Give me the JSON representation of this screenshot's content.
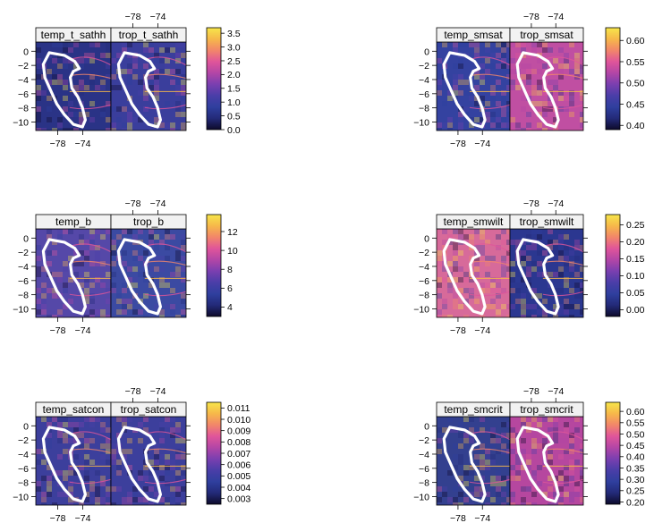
{
  "chart_data": [
    {
      "type": "heatmap",
      "panels": [
        "temp_t_sathh",
        "trop_t_sathh"
      ],
      "x_ticks": [
        -78,
        -74
      ],
      "y_ticks": [
        0,
        -2,
        -4,
        -6,
        -8,
        -10
      ],
      "colorbar": {
        "ticks": [
          "0.0",
          "0.5",
          "1.0",
          "1.5",
          "2.0",
          "2.5",
          "3.0",
          "3.5"
        ],
        "range": [
          0,
          3.7
        ]
      },
      "colorbar_lookup": [
        "#1d1a52",
        "#2c348f",
        "#4a3aa8",
        "#7d3fb0",
        "#b044a8",
        "#e0509a",
        "#f28a5a",
        "#f6e43e"
      ]
    },
    {
      "type": "heatmap",
      "panels": [
        "temp_smsat",
        "trop_smsat"
      ],
      "x_ticks": [
        -78,
        -74
      ],
      "y_ticks": [
        0,
        -2,
        -4,
        -6,
        -8,
        -10
      ],
      "colorbar": {
        "ticks": [
          "0.40",
          "0.45",
          "0.50",
          "0.55",
          "0.60"
        ],
        "range": [
          0.39,
          0.63
        ]
      }
    },
    {
      "type": "heatmap",
      "panels": [
        "temp_b",
        "trop_b"
      ],
      "x_ticks": [
        -78,
        -74
      ],
      "y_ticks": [
        0,
        -2,
        -4,
        -6,
        -8,
        -10
      ],
      "colorbar": {
        "ticks": [
          "4",
          "6",
          "8",
          "10",
          "12"
        ],
        "range": [
          3,
          13.8
        ]
      }
    },
    {
      "type": "heatmap",
      "panels": [
        "temp_smwilt",
        "trop_smwilt"
      ],
      "x_ticks": [
        -78,
        -74
      ],
      "y_ticks": [
        0,
        -2,
        -4,
        -6,
        -8,
        -10
      ],
      "colorbar": {
        "ticks": [
          "0.00",
          "0.05",
          "0.10",
          "0.15",
          "0.20",
          "0.25"
        ],
        "range": [
          -0.02,
          0.28
        ]
      }
    },
    {
      "type": "heatmap",
      "panels": [
        "temp_satcon",
        "trop_satcon"
      ],
      "x_ticks": [
        -78,
        -74
      ],
      "y_ticks": [
        0,
        -2,
        -4,
        -6,
        -8,
        -10
      ],
      "colorbar": {
        "ticks": [
          "0.003",
          "0.004",
          "0.005",
          "0.006",
          "0.007",
          "0.008",
          "0.009",
          "0.010",
          "0.011"
        ],
        "range": [
          0.0025,
          0.0115
        ]
      }
    },
    {
      "type": "heatmap",
      "panels": [
        "temp_smcrit",
        "trop_smcrit"
      ],
      "x_ticks": [
        -78,
        -74
      ],
      "y_ticks": [
        0,
        -2,
        -4,
        -6,
        -8,
        -10
      ],
      "colorbar": {
        "ticks": [
          "0.20",
          "0.25",
          "0.30",
          "0.35",
          "0.40",
          "0.45",
          "0.50",
          "0.55",
          "0.60"
        ],
        "range": [
          0.19,
          0.64
        ]
      }
    }
  ],
  "palette": [
    "#0d0a2b",
    "#232a78",
    "#2f3f9e",
    "#4a3ea8",
    "#7a3fb0",
    "#b346a6",
    "#e0559a",
    "#f2866a",
    "#f6b84a",
    "#f7e64a"
  ],
  "panel_tints": {
    "temp_t_sathh": "#2a3386",
    "trop_t_sathh": "#3a3e9c",
    "temp_smsat": "#3442a0",
    "trop_smsat": "#c04fa2",
    "temp_b": "#5548a8",
    "trop_b": "#3b4aa2",
    "temp_smwilt": "#d76a9a",
    "trop_smwilt": "#2b3790",
    "temp_satcon": "#3c3f9c",
    "trop_satcon": "#3c3f9c",
    "temp_smcrit": "#33408f",
    "trop_smcrit": "#b6479f"
  }
}
